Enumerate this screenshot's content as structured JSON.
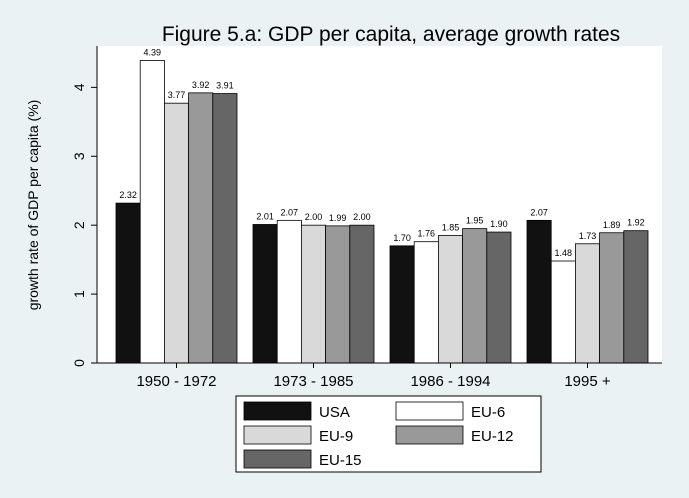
{
  "chart_data": {
    "type": "bar",
    "title": "Figure 5.a: GDP per capita, average growth rates",
    "ylabel": "growth rate of GDP per capita (%)",
    "xlabel": "",
    "categories": [
      "1950 - 1972",
      "1973 - 1985",
      "1986 - 1994",
      "1995 +"
    ],
    "series": [
      {
        "name": "USA",
        "color": "#111111",
        "values": [
          2.32,
          2.01,
          1.7,
          2.07
        ],
        "labels": [
          "2.32",
          "2.01",
          "1.70",
          "2.07"
        ]
      },
      {
        "name": "EU-6",
        "color": "#ffffff",
        "values": [
          4.39,
          2.07,
          1.76,
          1.48
        ],
        "labels": [
          "4.39",
          "2.07",
          "1.76",
          "1.48"
        ]
      },
      {
        "name": "EU-9",
        "color": "#d9d9d9",
        "values": [
          3.77,
          2.0,
          1.85,
          1.73
        ],
        "labels": [
          "3.77",
          "2.00",
          "1.85",
          "1.73"
        ]
      },
      {
        "name": "EU-12",
        "color": "#999999",
        "values": [
          3.92,
          1.99,
          1.95,
          1.89
        ],
        "labels": [
          "3.92",
          "1.99",
          "1.95",
          "1.89"
        ]
      },
      {
        "name": "EU-15",
        "color": "#666666",
        "values": [
          3.91,
          2.0,
          1.9,
          1.92
        ],
        "labels": [
          "3.91",
          "2.00",
          "1.90",
          "1.92"
        ]
      }
    ],
    "ylim": [
      0,
      4.6
    ],
    "yticks": [
      0,
      1,
      2,
      3,
      4
    ],
    "ytick_labels": [
      "0",
      "1",
      "2",
      "3",
      "4"
    ],
    "grid": false,
    "legend_position": "bottom"
  }
}
